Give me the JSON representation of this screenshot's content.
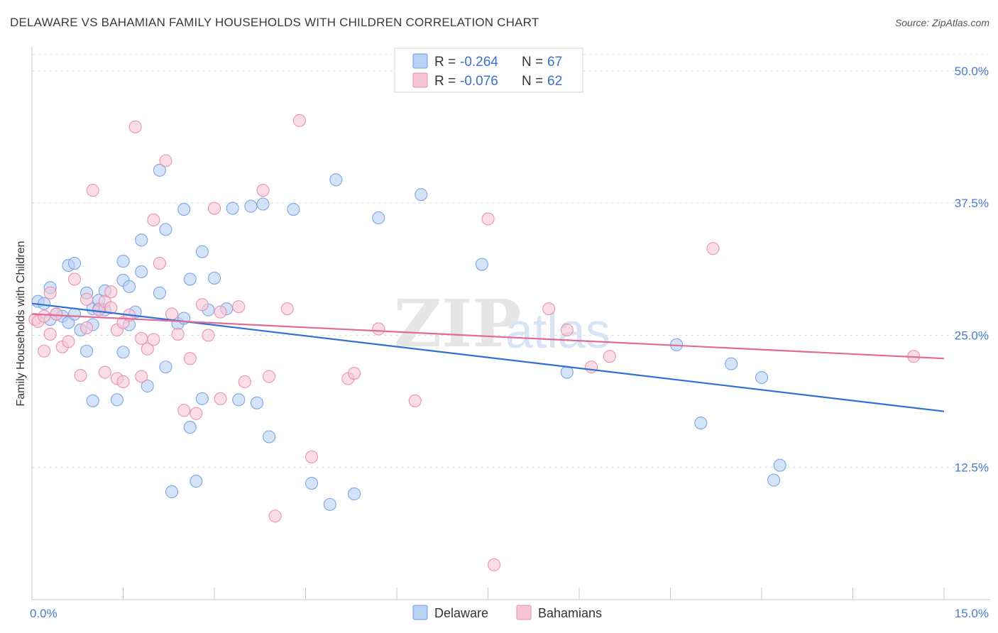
{
  "title": "DELAWARE VS BAHAMIAN FAMILY HOUSEHOLDS WITH CHILDREN CORRELATION CHART",
  "source": "Source: ZipAtlas.com",
  "watermark": {
    "zip": "ZIP",
    "atlas": "atlas"
  },
  "legend": {
    "r_label": "R =",
    "n_label": "N =",
    "entries": [
      {
        "r": "-0.264",
        "n": "67"
      },
      {
        "r": "-0.076",
        "n": "62"
      }
    ]
  },
  "chart_data": {
    "type": "scatter",
    "title": "DELAWARE VS BAHAMIAN FAMILY HOUSEHOLDS WITH CHILDREN CORRELATION CHART",
    "xlabel": "",
    "ylabel": "Family Households with Children",
    "xlim": [
      0,
      15
    ],
    "ylim": [
      0,
      52
    ],
    "x_tick_labels": [
      "0.0%",
      "15.0%"
    ],
    "y_ticks": [
      12.5,
      25.0,
      37.5,
      50.0
    ],
    "y_tick_labels": [
      "12.5%",
      "25.0%",
      "37.5%",
      "50.0%"
    ],
    "grid": true,
    "legend_position": "top-center",
    "series": [
      {
        "name": "Delaware",
        "color": "#6f9fe0",
        "fill": "#b9d1f3",
        "trend": [
          [
            0,
            28.0
          ],
          [
            15,
            17.8
          ]
        ],
        "trend_color": "#2f6fd6",
        "points": [
          [
            0.1,
            28.2
          ],
          [
            0.2,
            28.0
          ],
          [
            0.3,
            26.5
          ],
          [
            0.3,
            29.5
          ],
          [
            0.4,
            27.0
          ],
          [
            0.5,
            26.8
          ],
          [
            0.6,
            26.2
          ],
          [
            0.6,
            31.6
          ],
          [
            0.7,
            27.0
          ],
          [
            0.7,
            31.8
          ],
          [
            0.8,
            25.5
          ],
          [
            0.9,
            29.0
          ],
          [
            0.9,
            23.5
          ],
          [
            1.0,
            26.0
          ],
          [
            1.0,
            27.5
          ],
          [
            1.0,
            18.8
          ],
          [
            1.1,
            27.5
          ],
          [
            1.1,
            28.3
          ],
          [
            1.2,
            27.4
          ],
          [
            1.2,
            29.2
          ],
          [
            1.4,
            18.9
          ],
          [
            1.5,
            23.4
          ],
          [
            1.5,
            30.2
          ],
          [
            1.5,
            32.0
          ],
          [
            1.6,
            26.0
          ],
          [
            1.6,
            29.6
          ],
          [
            1.7,
            27.2
          ],
          [
            1.8,
            31.0
          ],
          [
            1.8,
            34.0
          ],
          [
            1.9,
            20.2
          ],
          [
            2.1,
            29.0
          ],
          [
            2.1,
            40.6
          ],
          [
            2.2,
            22.0
          ],
          [
            2.2,
            35.0
          ],
          [
            2.3,
            10.2
          ],
          [
            2.4,
            26.1
          ],
          [
            2.5,
            26.6
          ],
          [
            2.5,
            36.9
          ],
          [
            2.6,
            30.3
          ],
          [
            2.6,
            16.3
          ],
          [
            2.7,
            11.2
          ],
          [
            2.8,
            32.9
          ],
          [
            2.8,
            19.0
          ],
          [
            2.9,
            27.4
          ],
          [
            3.0,
            30.4
          ],
          [
            3.2,
            27.5
          ],
          [
            3.3,
            37.0
          ],
          [
            3.4,
            18.9
          ],
          [
            3.6,
            37.2
          ],
          [
            3.7,
            18.6
          ],
          [
            3.8,
            37.4
          ],
          [
            3.9,
            15.4
          ],
          [
            4.3,
            36.9
          ],
          [
            4.6,
            11.0
          ],
          [
            4.9,
            9.0
          ],
          [
            5.0,
            39.7
          ],
          [
            5.3,
            10.0
          ],
          [
            5.7,
            36.1
          ],
          [
            6.4,
            38.3
          ],
          [
            7.4,
            31.7
          ],
          [
            8.8,
            21.5
          ],
          [
            10.6,
            24.1
          ],
          [
            11.0,
            16.7
          ],
          [
            11.5,
            22.3
          ],
          [
            12.0,
            21.0
          ],
          [
            12.2,
            11.3
          ],
          [
            12.3,
            12.7
          ]
        ]
      },
      {
        "name": "Bahamians",
        "color": "#e889a8",
        "fill": "#f7c6d6",
        "trend": [
          [
            0,
            27.0
          ],
          [
            15,
            22.8
          ]
        ],
        "trend_color": "#e06b95",
        "points": [
          [
            0.05,
            26.5
          ],
          [
            0.1,
            26.3
          ],
          [
            0.2,
            26.8
          ],
          [
            0.2,
            23.5
          ],
          [
            0.3,
            25.1
          ],
          [
            0.3,
            29.0
          ],
          [
            0.4,
            27.0
          ],
          [
            0.5,
            23.9
          ],
          [
            0.6,
            24.4
          ],
          [
            0.7,
            30.3
          ],
          [
            0.8,
            21.2
          ],
          [
            0.9,
            28.4
          ],
          [
            0.9,
            25.7
          ],
          [
            1.0,
            38.7
          ],
          [
            1.1,
            27.4
          ],
          [
            1.2,
            28.2
          ],
          [
            1.2,
            21.5
          ],
          [
            1.3,
            27.6
          ],
          [
            1.3,
            29.1
          ],
          [
            1.4,
            25.5
          ],
          [
            1.4,
            20.9
          ],
          [
            1.5,
            20.6
          ],
          [
            1.5,
            26.2
          ],
          [
            1.6,
            26.9
          ],
          [
            1.7,
            44.7
          ],
          [
            1.8,
            24.7
          ],
          [
            1.8,
            21.1
          ],
          [
            1.9,
            23.7
          ],
          [
            2.0,
            24.6
          ],
          [
            2.0,
            35.9
          ],
          [
            2.1,
            31.8
          ],
          [
            2.2,
            41.5
          ],
          [
            2.3,
            27.0
          ],
          [
            2.4,
            25.1
          ],
          [
            2.5,
            17.9
          ],
          [
            2.6,
            22.8
          ],
          [
            2.7,
            17.6
          ],
          [
            2.8,
            27.9
          ],
          [
            2.9,
            25.0
          ],
          [
            3.0,
            37.0
          ],
          [
            3.1,
            19.0
          ],
          [
            3.1,
            27.2
          ],
          [
            3.4,
            27.7
          ],
          [
            3.5,
            20.6
          ],
          [
            3.8,
            38.7
          ],
          [
            3.9,
            21.1
          ],
          [
            4.0,
            7.9
          ],
          [
            4.2,
            27.5
          ],
          [
            4.4,
            45.3
          ],
          [
            4.6,
            13.5
          ],
          [
            5.2,
            20.9
          ],
          [
            5.3,
            21.4
          ],
          [
            5.7,
            25.6
          ],
          [
            6.3,
            18.8
          ],
          [
            7.5,
            36.0
          ],
          [
            7.6,
            3.3
          ],
          [
            8.5,
            27.5
          ],
          [
            8.8,
            25.5
          ],
          [
            9.2,
            22.0
          ],
          [
            9.5,
            23.0
          ],
          [
            11.2,
            33.2
          ],
          [
            14.5,
            23.0
          ]
        ]
      }
    ]
  }
}
